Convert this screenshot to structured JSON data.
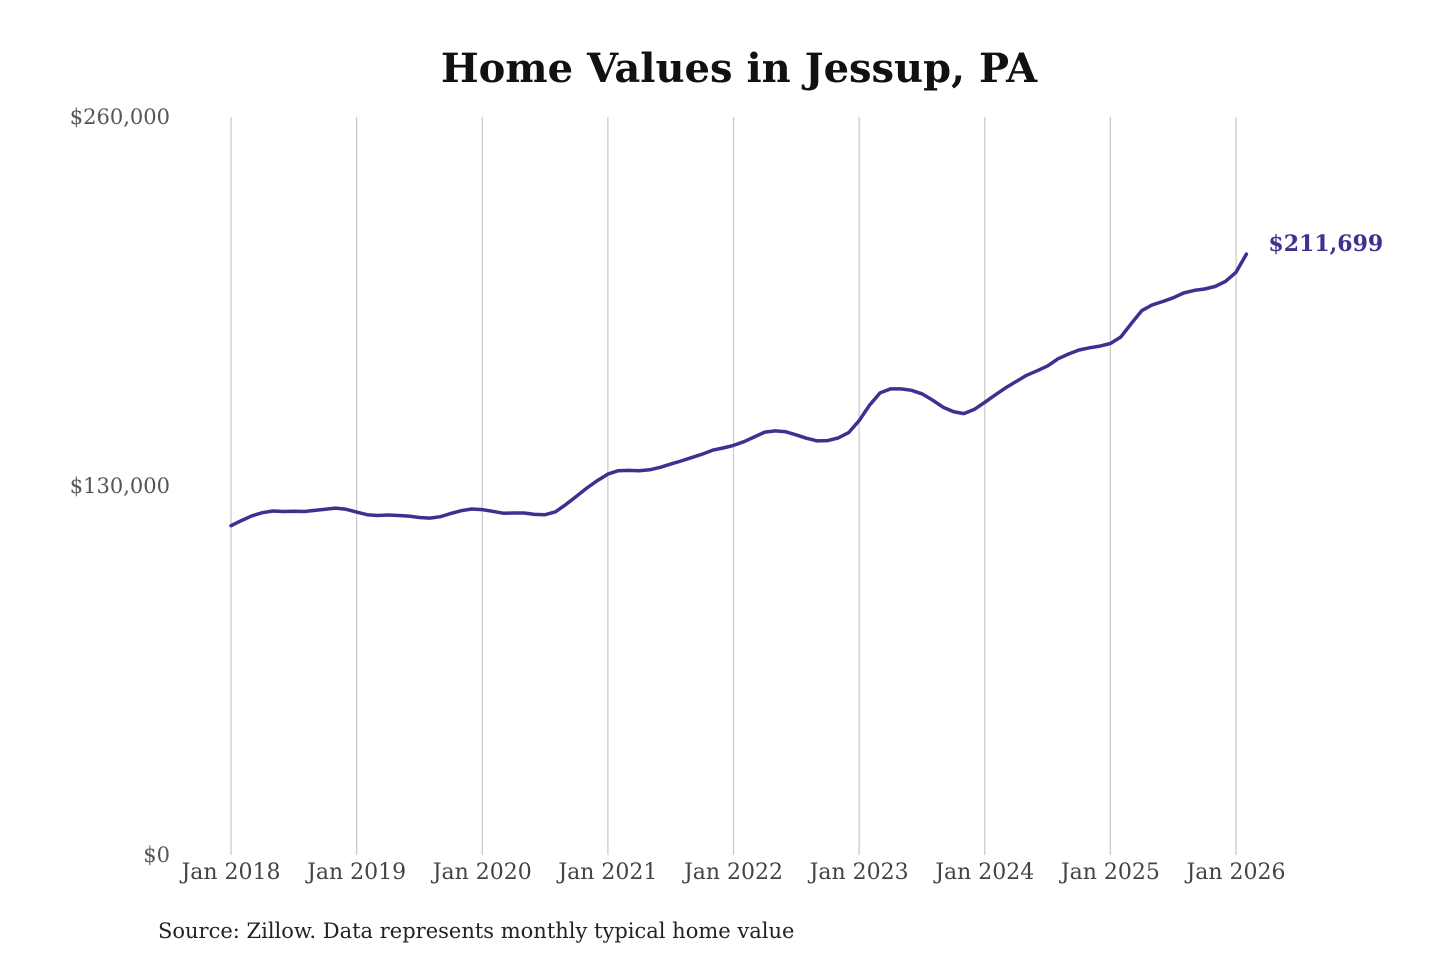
{
  "chart_data": {
    "type": "line",
    "title": "Home Values in Jessup, PA",
    "xlabel": "",
    "ylabel": "",
    "ylim": [
      0,
      260000
    ],
    "yticks": [
      {
        "value": 0,
        "label": "$0"
      },
      {
        "value": 130000,
        "label": "$130,000"
      },
      {
        "value": 260000,
        "label": "$260,000"
      }
    ],
    "xticks": [
      {
        "value": 2018,
        "label": "Jan 2018"
      },
      {
        "value": 2019,
        "label": "Jan 2019"
      },
      {
        "value": 2020,
        "label": "Jan 2020"
      },
      {
        "value": 2021,
        "label": "Jan 2021"
      },
      {
        "value": 2022,
        "label": "Jan 2022"
      },
      {
        "value": 2023,
        "label": "Jan 2023"
      },
      {
        "value": 2024,
        "label": "Jan 2024"
      },
      {
        "value": 2025,
        "label": "Jan 2025"
      },
      {
        "value": 2026,
        "label": "Jan 2026"
      }
    ],
    "xlim": [
      2018,
      2026.083
    ],
    "grid": "vertical",
    "line_color": "#3b3290",
    "end_label": "$211,699",
    "series": [
      {
        "points": [
          [
            2018.0,
            116000
          ],
          [
            2018.083,
            117800
          ],
          [
            2018.167,
            119500
          ],
          [
            2018.25,
            120600
          ],
          [
            2018.333,
            121200
          ],
          [
            2018.417,
            121000
          ],
          [
            2018.5,
            121100
          ],
          [
            2018.583,
            121000
          ],
          [
            2018.667,
            121400
          ],
          [
            2018.75,
            121800
          ],
          [
            2018.833,
            122200
          ],
          [
            2018.917,
            121800
          ],
          [
            2019.0,
            120800
          ],
          [
            2019.083,
            119900
          ],
          [
            2019.167,
            119600
          ],
          [
            2019.25,
            119800
          ],
          [
            2019.333,
            119600
          ],
          [
            2019.417,
            119400
          ],
          [
            2019.5,
            118900
          ],
          [
            2019.583,
            118700
          ],
          [
            2019.667,
            119200
          ],
          [
            2019.75,
            120300
          ],
          [
            2019.833,
            121300
          ],
          [
            2019.917,
            121900
          ],
          [
            2020.0,
            121700
          ],
          [
            2020.083,
            121100
          ],
          [
            2020.167,
            120400
          ],
          [
            2020.25,
            120500
          ],
          [
            2020.333,
            120500
          ],
          [
            2020.417,
            120000
          ],
          [
            2020.5,
            119900
          ],
          [
            2020.583,
            120900
          ],
          [
            2020.667,
            123500
          ],
          [
            2020.75,
            126400
          ],
          [
            2020.833,
            129300
          ],
          [
            2020.917,
            131900
          ],
          [
            2021.0,
            134200
          ],
          [
            2021.083,
            135400
          ],
          [
            2021.167,
            135500
          ],
          [
            2021.25,
            135400
          ],
          [
            2021.333,
            135700
          ],
          [
            2021.417,
            136600
          ],
          [
            2021.5,
            137700
          ],
          [
            2021.583,
            138800
          ],
          [
            2021.667,
            140000
          ],
          [
            2021.75,
            141200
          ],
          [
            2021.833,
            142600
          ],
          [
            2021.917,
            143400
          ],
          [
            2022.0,
            144300
          ],
          [
            2022.083,
            145600
          ],
          [
            2022.167,
            147300
          ],
          [
            2022.25,
            149000
          ],
          [
            2022.333,
            149400
          ],
          [
            2022.417,
            149100
          ],
          [
            2022.5,
            148000
          ],
          [
            2022.583,
            146800
          ],
          [
            2022.667,
            145900
          ],
          [
            2022.75,
            146000
          ],
          [
            2022.833,
            146900
          ],
          [
            2022.917,
            148800
          ],
          [
            2023.0,
            153000
          ],
          [
            2023.083,
            158500
          ],
          [
            2023.167,
            162800
          ],
          [
            2023.25,
            164200
          ],
          [
            2023.333,
            164200
          ],
          [
            2023.417,
            163700
          ],
          [
            2023.5,
            162500
          ],
          [
            2023.583,
            160300
          ],
          [
            2023.667,
            157800
          ],
          [
            2023.75,
            156200
          ],
          [
            2023.833,
            155500
          ],
          [
            2023.917,
            157000
          ],
          [
            2024.0,
            159500
          ],
          [
            2024.083,
            162100
          ],
          [
            2024.167,
            164600
          ],
          [
            2024.25,
            166800
          ],
          [
            2024.333,
            169000
          ],
          [
            2024.417,
            170600
          ],
          [
            2024.5,
            172300
          ],
          [
            2024.583,
            174800
          ],
          [
            2024.667,
            176500
          ],
          [
            2024.75,
            177900
          ],
          [
            2024.833,
            178700
          ],
          [
            2024.917,
            179300
          ],
          [
            2025.0,
            180200
          ],
          [
            2025.083,
            182500
          ],
          [
            2025.167,
            187300
          ],
          [
            2025.25,
            191800
          ],
          [
            2025.333,
            193800
          ],
          [
            2025.417,
            195000
          ],
          [
            2025.5,
            196300
          ],
          [
            2025.583,
            198000
          ],
          [
            2025.667,
            198900
          ],
          [
            2025.75,
            199400
          ],
          [
            2025.833,
            200300
          ],
          [
            2025.917,
            202100
          ],
          [
            2026.0,
            205300
          ],
          [
            2026.083,
            211699
          ]
        ]
      }
    ],
    "source": "Source: Zillow. Data represents monthly typical home value"
  }
}
